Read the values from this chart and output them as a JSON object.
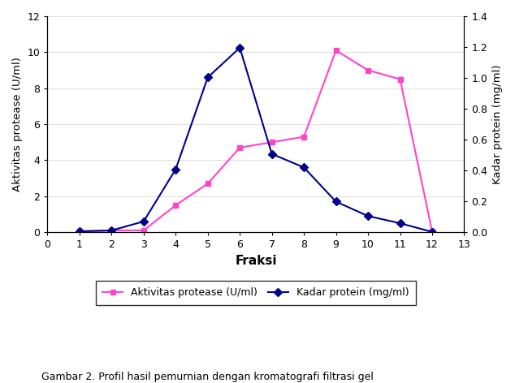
{
  "fraksi_x": [
    1,
    2,
    3,
    4,
    5,
    6,
    7,
    8,
    9,
    10,
    11,
    12
  ],
  "aktivitas_y": [
    0.05,
    0.1,
    0.1,
    1.5,
    2.7,
    4.7,
    5.0,
    5.3,
    10.1,
    9.0,
    8.5,
    0.05
  ],
  "protein_y_left": [
    0.05,
    0.1,
    0.6,
    3.5,
    8.6,
    10.25,
    4.35,
    3.6,
    1.7,
    0.9,
    0.5,
    0.02
  ],
  "aktivitas_color": "#FF44CC",
  "protein_color": "#00008B",
  "xlabel": "Fraksi",
  "ylabel_left": "Aktivitas protease (U/ml)",
  "ylabel_right": "Kadar protein (mg/ml)",
  "xlim": [
    0,
    13
  ],
  "ylim_left": [
    0,
    12
  ],
  "ylim_right": [
    0,
    1.4
  ],
  "xticks": [
    0,
    1,
    2,
    3,
    4,
    5,
    6,
    7,
    8,
    9,
    10,
    11,
    12,
    13
  ],
  "yticks_left": [
    0,
    2,
    4,
    6,
    8,
    10,
    12
  ],
  "yticks_right": [
    0,
    0.2,
    0.4,
    0.6,
    0.8,
    1.0,
    1.2,
    1.4
  ],
  "legend_aktivitas": "Aktivitas protease (U/ml)",
  "legend_protein": "Kadar protein (mg/ml)",
  "caption": "Gambar 2. Profil hasil pemurnian dengan kromatografi filtrasi gel",
  "fig_width": 6.34,
  "fig_height": 4.72,
  "background_color": "#ffffff",
  "scale_factor": 0.11667
}
